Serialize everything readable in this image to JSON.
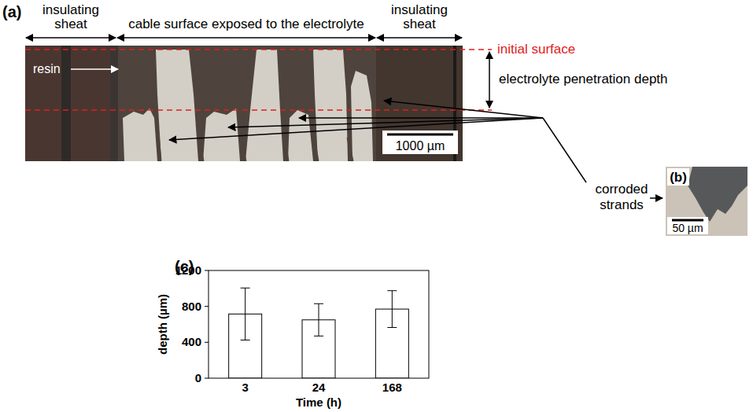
{
  "figure": {
    "panel_a": {
      "label": "(a)",
      "region_labels": [
        "insulating sheat",
        "cable surface exposed to the electrolyte",
        "insulating sheat"
      ],
      "resin": "resin",
      "initial_surface": "initial surface",
      "penetration_depth": "electrolyte penetration depth",
      "scale_bar": "1000 µm"
    },
    "panel_b": {
      "label": "(b)",
      "scale_bar": "50 µm"
    },
    "corroded_strands": "corroded strands",
    "panel_c": {
      "label": "(c)"
    }
  },
  "chart_data": {
    "type": "bar",
    "categories": [
      "3",
      "24",
      "168"
    ],
    "values": [
      715,
      650,
      770
    ],
    "errors": [
      290,
      180,
      205
    ],
    "color": "#ffffff",
    "xlabel": "Time (h)",
    "ylabel": "depth (µm)",
    "ylim": [
      0,
      1200
    ],
    "yticks": [
      0,
      400,
      800,
      1200
    ],
    "grid": false
  }
}
